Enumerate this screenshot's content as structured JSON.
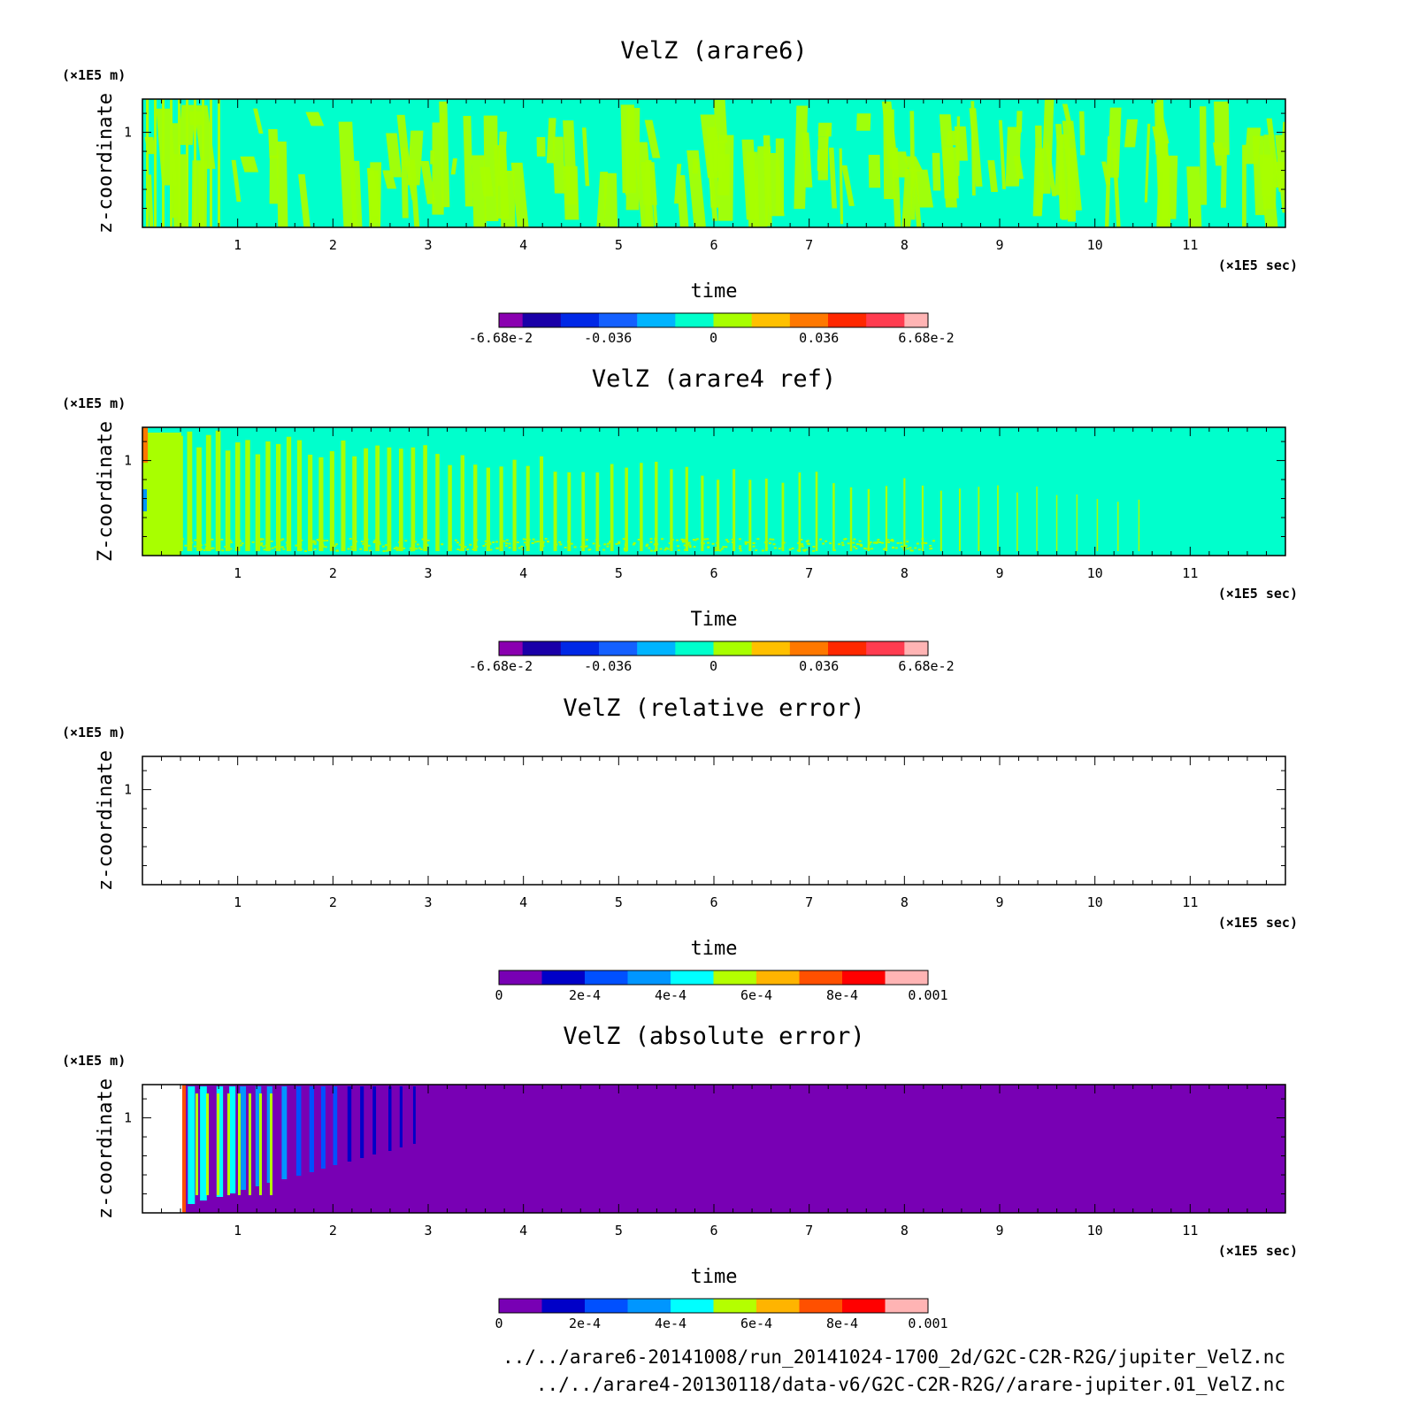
{
  "time_unit": "(×1E5 sec)",
  "z_unit": "(×1E5 m)",
  "z_ticks": [
    "1"
  ],
  "x_ticks": [
    "1",
    "2",
    "3",
    "4",
    "5",
    "6",
    "7",
    "8",
    "9",
    "10",
    "11"
  ],
  "chart_data": [
    {
      "type": "heatmap",
      "title": "VelZ (arare6)",
      "xlabel": "time",
      "ylabel": "z-coordinate",
      "x_unit": "(×1E5 sec)",
      "y_unit": "(×1E5 m)",
      "xlim": [
        0,
        12
      ],
      "ylim": [
        0,
        1.35
      ],
      "x_ticks": [
        1,
        2,
        3,
        4,
        5,
        6,
        7,
        8,
        9,
        10,
        11
      ],
      "y_ticks": [
        1
      ],
      "colorbar": {
        "levels": 10,
        "range": [
          -0.0668,
          0.0668
        ],
        "tick_labels": [
          "-6.68e-2",
          "-0.036",
          "0",
          "0.036",
          "6.68e-2"
        ],
        "colors": [
          "#8a00b0",
          "#1a00a8",
          "#0028e6",
          "#1460ff",
          "#00b4ff",
          "#00ffcc",
          "#a8ff00",
          "#ffc000",
          "#ff7800",
          "#ff2800",
          "#ff3c50",
          "#ffb4b4"
        ]
      },
      "background_color": "#00ffcc",
      "feature_color": "#a8ff00",
      "description_pattern": "sparse_columns"
    },
    {
      "type": "heatmap",
      "title": "VelZ (arare4 ref)",
      "xlabel": "Time",
      "ylabel": "Z-coordinate",
      "x_unit": "(×1E5 sec)",
      "y_unit": "(×1E5 m)",
      "xlim": [
        0,
        12
      ],
      "ylim": [
        0,
        1.35
      ],
      "x_ticks": [
        1,
        2,
        3,
        4,
        5,
        6,
        7,
        8,
        9,
        10,
        11
      ],
      "y_ticks": [
        1
      ],
      "colorbar": {
        "levels": 10,
        "range": [
          -0.0668,
          0.0668
        ],
        "tick_labels": [
          "-6.68e-2",
          "-0.036",
          "0",
          "0.036",
          "6.68e-2"
        ],
        "colors": [
          "#8a00b0",
          "#1a00a8",
          "#0028e6",
          "#1460ff",
          "#00b4ff",
          "#00ffcc",
          "#a8ff00",
          "#ffc000",
          "#ff7800",
          "#ff2800",
          "#ff3c50",
          "#ffb4b4"
        ]
      },
      "background_color": "#00ffcc",
      "feature_color": "#a8ff00",
      "description_pattern": "dense_decaying_columns"
    },
    {
      "type": "heatmap",
      "title": "VelZ (relative error)",
      "xlabel": "time",
      "ylabel": "z-coordinate",
      "x_unit": "(×1E5 sec)",
      "y_unit": "(×1E5 m)",
      "xlim": [
        0,
        12
      ],
      "ylim": [
        0,
        1.35
      ],
      "x_ticks": [
        1,
        2,
        3,
        4,
        5,
        6,
        7,
        8,
        9,
        10,
        11
      ],
      "y_ticks": [
        1
      ],
      "colorbar": {
        "levels": 10,
        "range": [
          0,
          0.001
        ],
        "tick_labels": [
          "0",
          "2e-4",
          "4e-4",
          "6e-4",
          "8e-4",
          "0.001"
        ],
        "colors": [
          "#7800b4",
          "#0000c8",
          "#0050ff",
          "#0096ff",
          "#00ffff",
          "#b4ff00",
          "#ffb400",
          "#ff5000",
          "#ff0000",
          "#ffb4b4"
        ]
      },
      "background_color": "#ffffff",
      "description_pattern": "empty"
    },
    {
      "type": "heatmap",
      "title": "VelZ (absolute error)",
      "xlabel": "time",
      "ylabel": "z-coordinate",
      "x_unit": "(×1E5 sec)",
      "y_unit": "(×1E5 m)",
      "xlim": [
        0,
        12
      ],
      "ylim": [
        0,
        1.35
      ],
      "x_ticks": [
        1,
        2,
        3,
        4,
        5,
        6,
        7,
        8,
        9,
        10,
        11
      ],
      "y_ticks": [
        1
      ],
      "colorbar": {
        "levels": 10,
        "range": [
          0,
          0.001
        ],
        "tick_labels": [
          "0",
          "2e-4",
          "4e-4",
          "6e-4",
          "8e-4",
          "0.001"
        ],
        "colors": [
          "#7800b4",
          "#0000c8",
          "#0050ff",
          "#0096ff",
          "#00ffff",
          "#b4ff00",
          "#ffb400",
          "#ff5000",
          "#ff0000",
          "#ffb4b4"
        ]
      },
      "background_color": "#7800b4",
      "description_pattern": "early_error_burst"
    }
  ],
  "footer": {
    "line1": "../../arare6-20141008/run_20141024-1700_2d/G2C-C2R-R2G/jupiter_VelZ.nc",
    "line2": "../../arare4-20130118/data-v6/G2C-C2R-R2G//arare-jupiter.01_VelZ.nc"
  }
}
